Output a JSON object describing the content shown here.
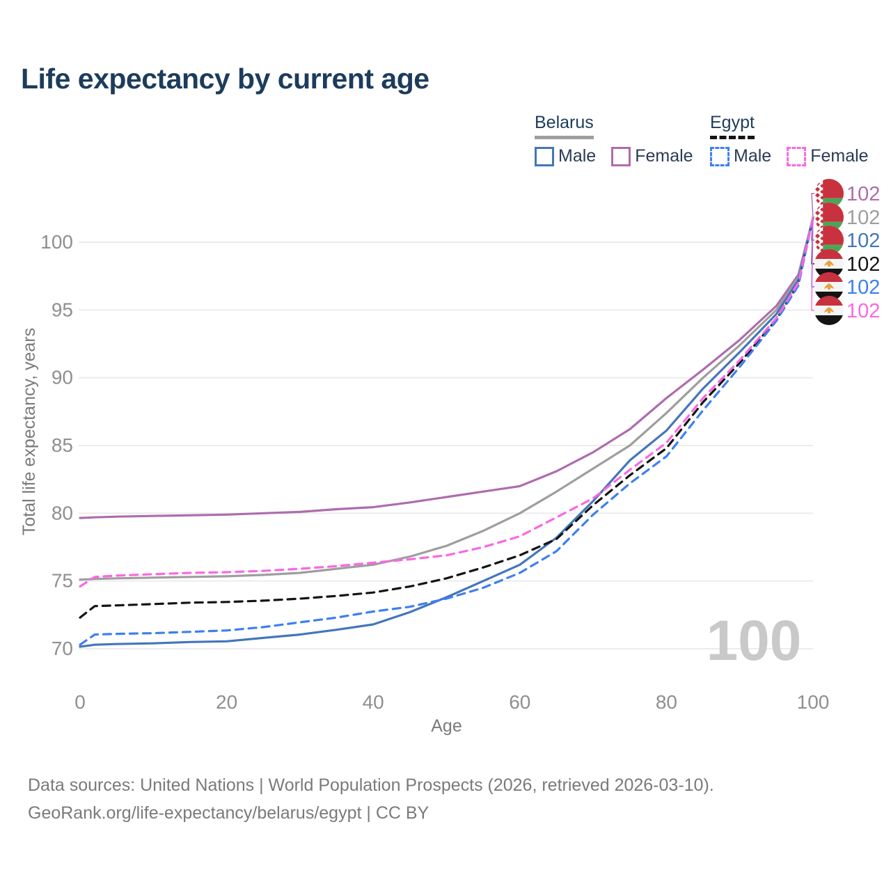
{
  "title": "Life expectancy by current age",
  "legend": {
    "groups": [
      {
        "country": "Belarus",
        "underline_style": "solid",
        "underline_color": "#9e9e9e",
        "items": [
          {
            "label": "Male",
            "color": "#4476ba",
            "dash": "solid"
          },
          {
            "label": "Female",
            "color": "#ae6cae",
            "dash": "solid"
          }
        ]
      },
      {
        "country": "Egypt",
        "underline_style": "dashed",
        "underline_color": "#141414",
        "items": [
          {
            "label": "Male",
            "color": "#3d7ff2",
            "dash": "dashed"
          },
          {
            "label": "Female",
            "color": "#fa68e1",
            "dash": "dashed"
          }
        ]
      }
    ]
  },
  "chart_data": {
    "type": "line",
    "title": "Life expectancy by current age",
    "xlabel": "Age",
    "ylabel": "Total life expectancy, years",
    "xlim": [
      0,
      100
    ],
    "ylim": [
      68.5,
      102.5
    ],
    "xticks": [
      0,
      20,
      40,
      60,
      80,
      100
    ],
    "yticks": [
      70,
      75,
      80,
      85,
      90,
      95,
      100
    ],
    "grid": "horizontal",
    "grid_color": "#ececec",
    "watermark_age": "100",
    "watermark_color": "#c9c9c9",
    "legend_position": "top-right",
    "series": [
      {
        "name": "Belarus Female",
        "country": "Belarus",
        "sex": "Female",
        "color": "#ae6cae",
        "dash": "solid",
        "flag": "by",
        "end_label": "102",
        "points": [
          [
            0,
            79.65
          ],
          [
            2,
            79.7
          ],
          [
            5,
            79.75
          ],
          [
            10,
            79.8
          ],
          [
            15,
            79.85
          ],
          [
            20,
            79.9
          ],
          [
            25,
            80.0
          ],
          [
            30,
            80.1
          ],
          [
            35,
            80.3
          ],
          [
            40,
            80.45
          ],
          [
            45,
            80.8
          ],
          [
            50,
            81.2
          ],
          [
            55,
            81.6
          ],
          [
            60,
            82.0
          ],
          [
            65,
            83.1
          ],
          [
            70,
            84.5
          ],
          [
            75,
            86.2
          ],
          [
            80,
            88.5
          ],
          [
            85,
            90.6
          ],
          [
            90,
            92.8
          ],
          [
            95,
            95.3
          ],
          [
            98,
            97.6
          ],
          [
            100,
            101.8
          ]
        ]
      },
      {
        "name": "Belarus Total",
        "country": "Belarus",
        "sex": "Both",
        "color": "#9e9e9e",
        "dash": "solid",
        "flag": "by",
        "end_label": "102",
        "points": [
          [
            0,
            75.1
          ],
          [
            2,
            75.15
          ],
          [
            5,
            75.2
          ],
          [
            10,
            75.25
          ],
          [
            15,
            75.3
          ],
          [
            20,
            75.35
          ],
          [
            25,
            75.45
          ],
          [
            30,
            75.6
          ],
          [
            35,
            75.9
          ],
          [
            40,
            76.2
          ],
          [
            45,
            76.8
          ],
          [
            50,
            77.6
          ],
          [
            55,
            78.7
          ],
          [
            60,
            80.0
          ],
          [
            65,
            81.6
          ],
          [
            70,
            83.3
          ],
          [
            75,
            85.0
          ],
          [
            80,
            87.4
          ],
          [
            85,
            90.0
          ],
          [
            90,
            92.4
          ],
          [
            95,
            95.0
          ],
          [
            98,
            97.4
          ],
          [
            100,
            101.8
          ]
        ]
      },
      {
        "name": "Belarus Male",
        "country": "Belarus",
        "sex": "Male",
        "color": "#4476ba",
        "dash": "solid",
        "flag": "by",
        "end_label": "102",
        "points": [
          [
            0,
            70.15
          ],
          [
            2,
            70.3
          ],
          [
            5,
            70.35
          ],
          [
            10,
            70.4
          ],
          [
            15,
            70.5
          ],
          [
            20,
            70.55
          ],
          [
            25,
            70.8
          ],
          [
            30,
            71.05
          ],
          [
            35,
            71.4
          ],
          [
            40,
            71.8
          ],
          [
            45,
            72.7
          ],
          [
            50,
            73.8
          ],
          [
            55,
            75.0
          ],
          [
            60,
            76.2
          ],
          [
            65,
            78.2
          ],
          [
            70,
            80.9
          ],
          [
            75,
            83.9
          ],
          [
            80,
            86.1
          ],
          [
            85,
            89.2
          ],
          [
            90,
            91.9
          ],
          [
            95,
            94.7
          ],
          [
            98,
            97.2
          ],
          [
            100,
            101.8
          ]
        ]
      },
      {
        "name": "Egypt Total",
        "country": "Egypt",
        "sex": "Both",
        "color": "#141414",
        "dash": "dashed",
        "flag": "eg",
        "end_label": "102",
        "points": [
          [
            0,
            72.3
          ],
          [
            2,
            73.15
          ],
          [
            5,
            73.2
          ],
          [
            10,
            73.3
          ],
          [
            15,
            73.4
          ],
          [
            20,
            73.45
          ],
          [
            25,
            73.55
          ],
          [
            30,
            73.7
          ],
          [
            35,
            73.9
          ],
          [
            40,
            74.15
          ],
          [
            45,
            74.6
          ],
          [
            50,
            75.2
          ],
          [
            55,
            76.0
          ],
          [
            60,
            76.9
          ],
          [
            65,
            78.1
          ],
          [
            70,
            80.6
          ],
          [
            75,
            82.8
          ],
          [
            80,
            84.8
          ],
          [
            85,
            88.2
          ],
          [
            90,
            91.1
          ],
          [
            95,
            94.3
          ],
          [
            98,
            96.9
          ],
          [
            100,
            101.8
          ]
        ]
      },
      {
        "name": "Egypt Male",
        "country": "Egypt",
        "sex": "Male",
        "color": "#3d7ff2",
        "dash": "dashed",
        "flag": "eg",
        "end_label": "102",
        "points": [
          [
            0,
            70.3
          ],
          [
            2,
            71.05
          ],
          [
            5,
            71.1
          ],
          [
            10,
            71.15
          ],
          [
            15,
            71.25
          ],
          [
            20,
            71.35
          ],
          [
            25,
            71.6
          ],
          [
            30,
            71.95
          ],
          [
            35,
            72.3
          ],
          [
            40,
            72.75
          ],
          [
            45,
            73.1
          ],
          [
            50,
            73.7
          ],
          [
            55,
            74.5
          ],
          [
            60,
            75.6
          ],
          [
            65,
            77.2
          ],
          [
            70,
            79.9
          ],
          [
            75,
            82.2
          ],
          [
            80,
            84.2
          ],
          [
            85,
            87.6
          ],
          [
            90,
            90.8
          ],
          [
            95,
            94.2
          ],
          [
            98,
            96.8
          ],
          [
            100,
            101.8
          ]
        ]
      },
      {
        "name": "Egypt Female",
        "country": "Egypt",
        "sex": "Female",
        "color": "#fa68e1",
        "dash": "dashed",
        "flag": "eg",
        "end_label": "102",
        "points": [
          [
            0,
            74.6
          ],
          [
            2,
            75.3
          ],
          [
            5,
            75.4
          ],
          [
            10,
            75.5
          ],
          [
            15,
            75.6
          ],
          [
            20,
            75.65
          ],
          [
            25,
            75.75
          ],
          [
            30,
            75.9
          ],
          [
            35,
            76.1
          ],
          [
            40,
            76.35
          ],
          [
            45,
            76.6
          ],
          [
            50,
            76.9
          ],
          [
            55,
            77.5
          ],
          [
            60,
            78.3
          ],
          [
            65,
            79.7
          ],
          [
            70,
            81.1
          ],
          [
            75,
            83.2
          ],
          [
            80,
            85.2
          ],
          [
            85,
            88.5
          ],
          [
            90,
            91.3
          ],
          [
            95,
            94.4
          ],
          [
            98,
            97.0
          ],
          [
            100,
            101.8
          ]
        ]
      }
    ]
  },
  "footer": {
    "line1": "Data sources: United Nations | World Population Prospects (2026, retrieved 2026-03-10).",
    "line2": "GeoRank.org/life-expectancy/belarus/egypt | CC BY"
  }
}
